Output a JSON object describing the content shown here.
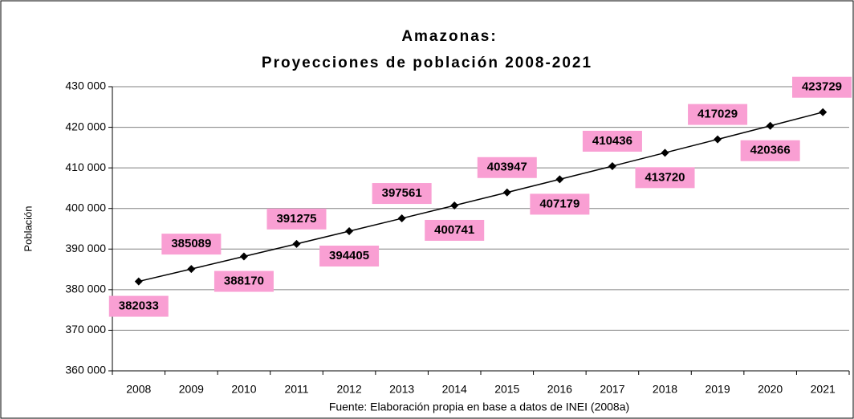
{
  "chart_data": {
    "type": "line",
    "title": "Amazonas:",
    "subtitle": "Proyecciones de población 2008-2021",
    "x_label": "Fuente: Elaboración propia en base a datos de INEI (2008a)",
    "y_label": "Población",
    "categories": [
      "2008",
      "2009",
      "2010",
      "2011",
      "2012",
      "2013",
      "2014",
      "2015",
      "2016",
      "2017",
      "2018",
      "2019",
      "2020",
      "2021"
    ],
    "values": [
      382033,
      385089,
      388170,
      391275,
      394405,
      397561,
      400741,
      403947,
      407179,
      410436,
      413720,
      417029,
      420366,
      423729
    ],
    "color": "#000000",
    "label_color": "#f99fd3",
    "ylim": [
      360000,
      430000
    ],
    "yticks": [
      {
        "value": 360000,
        "label": "360 000"
      },
      {
        "value": 370000,
        "label": "370 000"
      },
      {
        "value": 380000,
        "label": "380 000"
      },
      {
        "value": 390000,
        "label": "390 000"
      },
      {
        "value": 400000,
        "label": "400 000"
      },
      {
        "value": 410000,
        "label": "410 000"
      },
      {
        "value": 420000,
        "label": "420 000"
      },
      {
        "value": 430000,
        "label": "430 000"
      }
    ],
    "grid": true
  }
}
